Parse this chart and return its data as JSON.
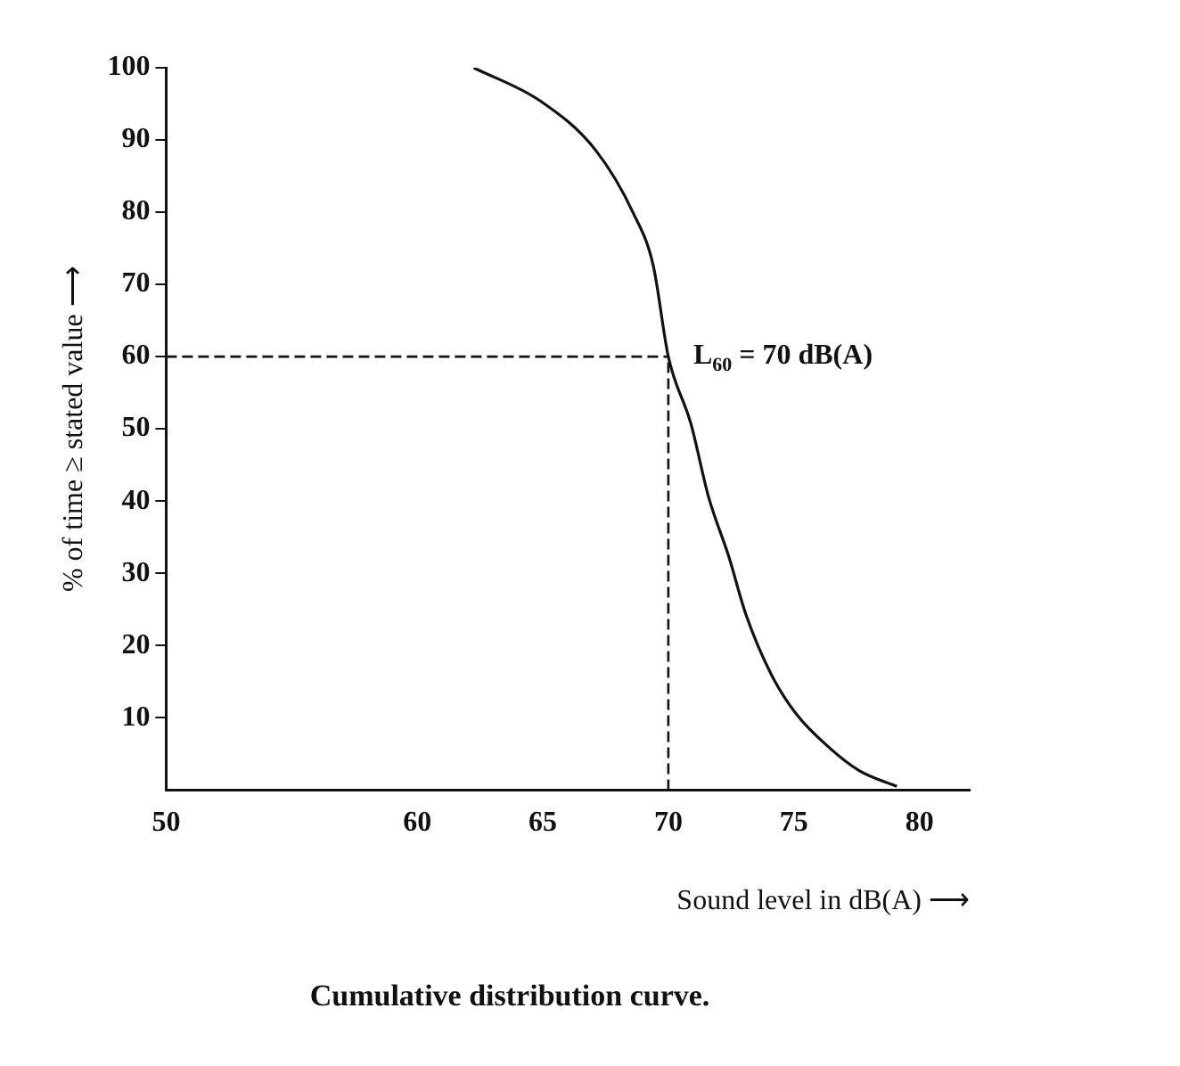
{
  "chart_data": {
    "type": "line",
    "title": "Cumulative distribution curve.",
    "xlabel": "Sound level in dB(A) ⟶",
    "ylabel": "% of time ≥ stated value ⟶",
    "x": [
      62.25,
      64.9,
      67.1,
      68.6,
      69.4,
      70,
      70.9,
      71.6,
      72.4,
      73.1,
      74.1,
      75.1,
      76.4,
      77.6,
      79.1
    ],
    "series": [
      {
        "color": "#111111",
        "values": [
          100,
          95.4,
          88.6,
          79.9,
          72.6,
          60,
          50.7,
          40.6,
          32.4,
          24.2,
          16,
          10.5,
          5.9,
          2.7,
          0.5
        ]
      }
    ],
    "xlim": [
      50,
      82
    ],
    "xticks": [
      50,
      60,
      65,
      70,
      75,
      80
    ],
    "ylim": [
      0,
      100
    ],
    "yticks": [
      10,
      20,
      30,
      40,
      50,
      60,
      70,
      80,
      90,
      100
    ],
    "ref_lines": [
      {
        "axis": "y",
        "value": 60,
        "line_style": "dashed"
      },
      {
        "axis": "x",
        "value": 70,
        "line_style": "dashed"
      }
    ],
    "annotations": [
      {
        "text": "L$_{60}$ = 70 dB(A)",
        "x": 70,
        "y": 60
      }
    ],
    "grid": false,
    "legend": false,
    "marker": "none",
    "line_style": "solid"
  }
}
